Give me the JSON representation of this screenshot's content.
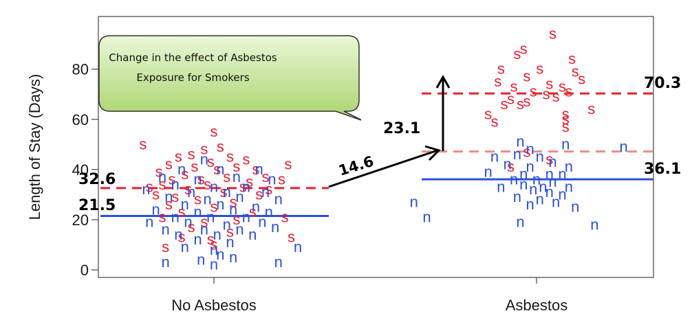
{
  "chart_data": {
    "type": "scatter",
    "title": "",
    "ylabel": "Length of Stay (Days)",
    "xlabel": "",
    "categories": [
      "No Asbestos",
      "Asbestos"
    ],
    "ylim": [
      -3,
      101
    ],
    "yticks": [
      0,
      20,
      40,
      60,
      80
    ],
    "colors": {
      "smokers": "#e8202e",
      "nonsmokers": "#2b4fe0",
      "fit_light": "#f08a8a"
    },
    "series": [
      {
        "marker": "s",
        "color": "#e8202e",
        "points": [
          [
            0.97,
            48
          ],
          [
            1.02,
            49
          ],
          [
            0.93,
            46
          ],
          [
            1.05,
            45
          ],
          [
            0.89,
            45
          ],
          [
            1.1,
            44
          ],
          [
            0.86,
            42
          ],
          [
            0.99,
            43
          ],
          [
            1.07,
            41
          ],
          [
            0.94,
            41
          ],
          [
            1.13,
            40
          ],
          [
            0.83,
            39
          ],
          [
            1.01,
            40
          ],
          [
            0.91,
            38
          ],
          [
            1.16,
            37
          ],
          [
            1.04,
            37
          ],
          [
            0.87,
            36
          ],
          [
            0.96,
            36
          ],
          [
            1.21,
            36
          ],
          [
            0.8,
            33
          ],
          [
            1.11,
            35
          ],
          [
            0.84,
            34
          ],
          [
            0.98,
            34
          ],
          [
            1.09,
            33
          ],
          [
            0.92,
            32
          ],
          [
            1.17,
            32
          ],
          [
            0.82,
            30
          ],
          [
            1.03,
            31
          ],
          [
            0.88,
            29
          ],
          [
            1.14,
            30
          ],
          [
            0.95,
            28
          ],
          [
            1.06,
            27
          ],
          [
            0.86,
            26
          ],
          [
            1.0,
            25
          ],
          [
            0.9,
            23
          ],
          [
            1.12,
            23
          ],
          [
            0.84,
            21
          ],
          [
            0.97,
            19
          ],
          [
            1.07,
            20
          ],
          [
            1.22,
            21
          ],
          [
            0.93,
            17
          ],
          [
            1.05,
            15
          ],
          [
            0.9,
            13
          ],
          [
            0.99,
            12
          ],
          [
            1.0,
            10
          ],
          [
            1.24,
            13
          ],
          [
            0.85,
            9
          ],
          [
            1.0,
            55
          ],
          [
            0.78,
            50
          ],
          [
            1.23,
            42
          ],
          [
            2.05,
            94
          ],
          [
            1.96,
            88
          ],
          [
            1.94,
            86
          ],
          [
            2.11,
            84
          ],
          [
            1.89,
            80
          ],
          [
            2.01,
            80
          ],
          [
            2.12,
            79
          ],
          [
            1.97,
            77
          ],
          [
            2.14,
            76
          ],
          [
            1.88,
            75
          ],
          [
            2.04,
            74
          ],
          [
            1.93,
            73
          ],
          [
            2.08,
            73
          ],
          [
            2.1,
            71
          ],
          [
            1.99,
            71
          ],
          [
            2.03,
            70
          ],
          [
            2.06,
            69
          ],
          [
            1.92,
            68
          ],
          [
            1.9,
            66
          ],
          [
            2.09,
            62
          ],
          [
            2.09,
            60
          ],
          [
            2.09,
            57
          ],
          [
            1.97,
            67
          ],
          [
            1.85,
            62
          ],
          [
            1.95,
            66
          ],
          [
            1.87,
            59
          ],
          [
            1.97,
            47
          ],
          [
            2.04,
            44
          ],
          [
            1.92,
            41
          ],
          [
            2.17,
            64
          ]
        ]
      },
      {
        "marker": "n",
        "color": "#2b4fe0",
        "points": [
          [
            0.97,
            44
          ],
          [
            0.9,
            40
          ],
          [
            1.02,
            40
          ],
          [
            1.14,
            40
          ],
          [
            0.84,
            37
          ],
          [
            0.95,
            36
          ],
          [
            1.07,
            37
          ],
          [
            1.18,
            36
          ],
          [
            0.88,
            34
          ],
          [
            1.0,
            33
          ],
          [
            1.1,
            33
          ],
          [
            0.79,
            32
          ],
          [
            0.93,
            31
          ],
          [
            1.04,
            31
          ],
          [
            1.16,
            31
          ],
          [
            0.86,
            29
          ],
          [
            0.98,
            28
          ],
          [
            1.08,
            29
          ],
          [
            1.2,
            28
          ],
          [
            0.91,
            26
          ],
          [
            1.02,
            26
          ],
          [
            1.13,
            25
          ],
          [
            0.82,
            24
          ],
          [
            0.95,
            23
          ],
          [
            1.06,
            24
          ],
          [
            1.17,
            23
          ],
          [
            0.88,
            21
          ],
          [
            0.99,
            21
          ],
          [
            1.1,
            21
          ],
          [
            0.8,
            19
          ],
          [
            0.92,
            19
          ],
          [
            1.04,
            18
          ],
          [
            1.15,
            19
          ],
          [
            0.85,
            16
          ],
          [
            0.97,
            16
          ],
          [
            1.08,
            16
          ],
          [
            1.19,
            17
          ],
          [
            0.89,
            14
          ],
          [
            1.01,
            14
          ],
          [
            1.12,
            14
          ],
          [
            0.95,
            12
          ],
          [
            1.05,
            11
          ],
          [
            0.91,
            9
          ],
          [
            1.0,
            8
          ],
          [
            1.02,
            6
          ],
          [
            1.06,
            5
          ],
          [
            0.96,
            4
          ],
          [
            1.0,
            2
          ],
          [
            0.85,
            3
          ],
          [
            1.2,
            3
          ],
          [
            1.26,
            9
          ],
          [
            1.95,
            51
          ],
          [
            2.09,
            50
          ],
          [
            2.27,
            49
          ],
          [
            1.98,
            48
          ],
          [
            1.94,
            46
          ],
          [
            1.87,
            45
          ],
          [
            2.01,
            45
          ],
          [
            2.05,
            43
          ],
          [
            1.91,
            42
          ],
          [
            1.98,
            41
          ],
          [
            2.1,
            41
          ],
          [
            1.85,
            39
          ],
          [
            1.96,
            38
          ],
          [
            2.04,
            38
          ],
          [
            2.08,
            38
          ],
          [
            1.93,
            36
          ],
          [
            2.0,
            36
          ],
          [
            2.05,
            35
          ],
          [
            1.96,
            34
          ],
          [
            2.02,
            33
          ],
          [
            2.1,
            33
          ],
          [
            1.89,
            33
          ],
          [
            1.99,
            32
          ],
          [
            2.04,
            31
          ],
          [
            2.08,
            30
          ],
          [
            1.94,
            29
          ],
          [
            2.01,
            28
          ],
          [
            2.06,
            27
          ],
          [
            1.98,
            26
          ],
          [
            2.12,
            25
          ],
          [
            1.62,
            27
          ],
          [
            1.66,
            21
          ],
          [
            1.95,
            19
          ],
          [
            2.18,
            18
          ]
        ]
      }
    ],
    "fit_lines": [
      {
        "group": "No Asbestos",
        "y": 32.6,
        "color": "#e8202e",
        "dashed": true
      },
      {
        "group": "No Asbestos",
        "y": 21.5,
        "color": "#2b4fe0",
        "dashed": false
      },
      {
        "group": "Asbestos",
        "y": 70.3,
        "color": "#e8202e",
        "dashed": true
      },
      {
        "group": "Asbestos",
        "y": 36.1,
        "color": "#2b4fe0",
        "dashed": false
      },
      {
        "group": "Asbestos",
        "y": 47.2,
        "color": "#f08a8a",
        "dashed": true
      }
    ],
    "annotations": {
      "no_asbestos_smokers": "32.6",
      "no_asbestos_nonsmokers": "21.5",
      "asbestos_smokers": "70.3",
      "asbestos_nonsmokers": "36.1",
      "difference_arrow": "14.6",
      "interaction_arrow": "23.1"
    },
    "callout": "Change in the effect of Asbestos Exposure for Smokers"
  }
}
